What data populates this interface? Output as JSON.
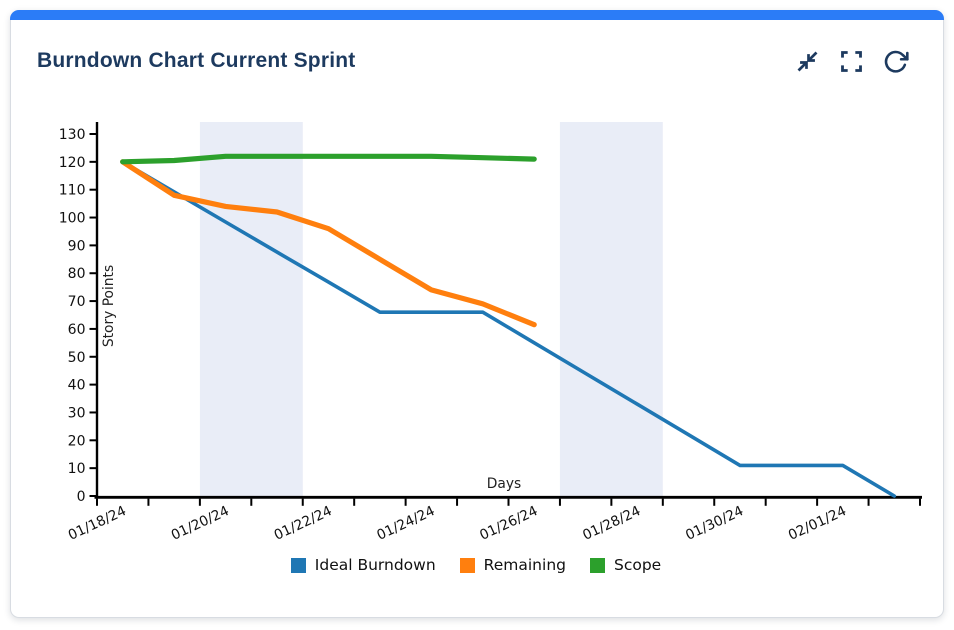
{
  "card": {
    "title": "Burndown Chart Current Sprint",
    "colors": {
      "accent_bar": "#2b7cf7",
      "title_text": "#1d3a5f",
      "icon": "#1d3a5f",
      "card_border": "#d8dce2",
      "card_bg": "#ffffff"
    },
    "toolbar": {
      "icons": [
        "collapse-icon",
        "fullscreen-icon",
        "refresh-icon"
      ]
    }
  },
  "chart_data": {
    "type": "line",
    "title": "",
    "xlabel": "Days",
    "ylabel": "Story Points",
    "x_unit": "date",
    "dates": [
      "01/18/24",
      "01/19/24",
      "01/20/24",
      "01/21/24",
      "01/22/24",
      "01/23/24",
      "01/24/24",
      "01/25/24",
      "01/26/24",
      "01/27/24",
      "01/28/24",
      "01/29/24",
      "01/30/24",
      "01/31/24",
      "02/01/24",
      "02/02/24"
    ],
    "x_tick_dates": [
      "01/18/24",
      "01/19/24",
      "01/20/24",
      "01/21/24",
      "01/22/24",
      "01/23/24",
      "01/24/24",
      "01/25/24",
      "01/26/24",
      "01/27/24",
      "01/28/24",
      "01/29/24",
      "01/30/24",
      "01/31/24",
      "02/01/24",
      "02/02/24",
      "02/03/24"
    ],
    "x_tick_labels_shown": [
      "01/18/24",
      "01/20/24",
      "01/22/24",
      "01/24/24",
      "01/26/24",
      "01/28/24",
      "01/30/24",
      "02/01/24"
    ],
    "y_ticks": [
      0,
      10,
      20,
      30,
      40,
      50,
      60,
      70,
      80,
      90,
      100,
      110,
      120,
      130
    ],
    "ylim": [
      0,
      134
    ],
    "grid": false,
    "legend_position": "bottom",
    "band_color": "#e9edf7",
    "weekend_bands": [
      {
        "start": "01/20/24",
        "end": "01/22/24"
      },
      {
        "start": "01/27/24",
        "end": "01/29/24"
      }
    ],
    "series": [
      {
        "name": "Ideal Burndown",
        "color": "#1f77b4",
        "line_width": 3.6,
        "values": [
          120,
          109.2,
          98.4,
          87.6,
          76.8,
          66,
          66,
          66,
          55,
          44,
          33,
          22,
          11,
          11,
          11,
          0
        ]
      },
      {
        "name": "Remaining",
        "color": "#ff7f0e",
        "line_width": 5.2,
        "values": [
          120,
          108,
          104,
          102,
          96,
          85,
          74,
          69,
          61.5
        ]
      },
      {
        "name": "Scope",
        "color": "#2ca02c",
        "line_width": 5.2,
        "values": [
          120,
          120.5,
          122,
          122,
          122,
          122,
          122,
          121.5,
          121
        ]
      }
    ]
  }
}
